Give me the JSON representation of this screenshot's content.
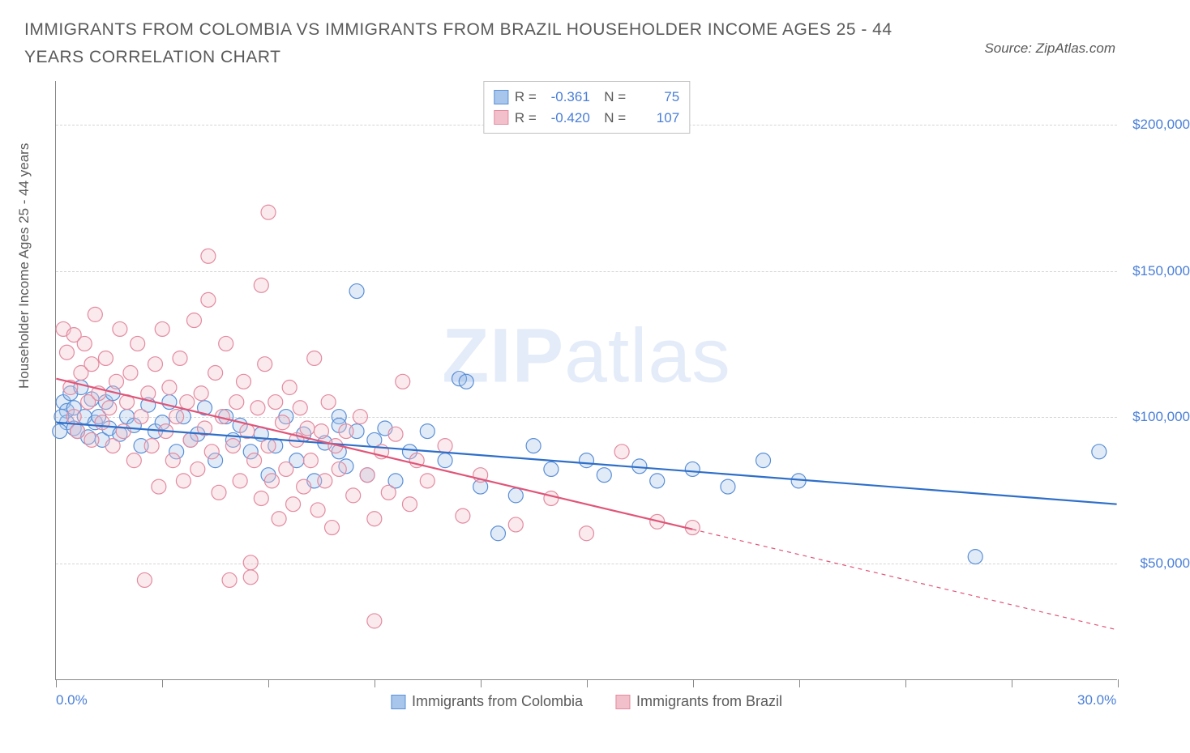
{
  "title": "IMMIGRANTS FROM COLOMBIA VS IMMIGRANTS FROM BRAZIL HOUSEHOLDER INCOME AGES 25 - 44 YEARS CORRELATION CHART",
  "source": "Source: ZipAtlas.com",
  "y_axis_label": "Householder Income Ages 25 - 44 years",
  "watermark_bold": "ZIP",
  "watermark_light": "atlas",
  "chart": {
    "type": "scatter",
    "background_color": "#ffffff",
    "grid_color": "#d5d5d5",
    "axis_color": "#888888",
    "text_color": "#5a5a5a",
    "value_color": "#4a7fd8",
    "xlim": [
      0,
      30
    ],
    "ylim": [
      10000,
      215000
    ],
    "x_ticks": [
      0,
      3,
      6,
      9,
      12,
      15,
      18,
      21,
      24,
      27,
      30
    ],
    "y_gridlines": [
      50000,
      100000,
      150000,
      200000
    ],
    "y_tick_labels": [
      "$50,000",
      "$100,000",
      "$150,000",
      "$200,000"
    ],
    "x_axis_labels": [
      {
        "pos": 0,
        "text": "0.0%"
      },
      {
        "pos": 30,
        "text": "30.0%"
      }
    ],
    "marker_radius": 9,
    "marker_stroke_width": 1.2,
    "marker_fill_opacity": 0.35,
    "trend_line_width": 2.2,
    "series": [
      {
        "name": "Immigrants from Colombia",
        "color_fill": "#a8c6ec",
        "color_stroke": "#5a8fd6",
        "trend_color": "#2e6fc9",
        "R": "-0.361",
        "N": "75",
        "trend": {
          "x1": 0,
          "y1": 98000,
          "x2": 30,
          "y2": 70000,
          "solid_until_x": 30
        },
        "points": [
          [
            0.2,
            105000
          ],
          [
            0.3,
            102000
          ],
          [
            0.3,
            98000
          ],
          [
            0.4,
            108000
          ],
          [
            0.5,
            96000
          ],
          [
            0.5,
            103000
          ],
          [
            0.6,
            95000
          ],
          [
            0.7,
            110000
          ],
          [
            0.8,
            100000
          ],
          [
            0.9,
            93000
          ],
          [
            1.0,
            106000
          ],
          [
            1.1,
            98000
          ],
          [
            1.2,
            100000
          ],
          [
            1.3,
            92000
          ],
          [
            1.4,
            105000
          ],
          [
            1.5,
            96000
          ],
          [
            1.6,
            108000
          ],
          [
            1.8,
            94000
          ],
          [
            2.0,
            100000
          ],
          [
            2.2,
            97000
          ],
          [
            2.4,
            90000
          ],
          [
            2.6,
            104000
          ],
          [
            2.8,
            95000
          ],
          [
            3.0,
            98000
          ],
          [
            3.2,
            105000
          ],
          [
            3.4,
            88000
          ],
          [
            3.6,
            100000
          ],
          [
            3.8,
            92000
          ],
          [
            4.0,
            94000
          ],
          [
            4.2,
            103000
          ],
          [
            4.5,
            85000
          ],
          [
            4.8,
            100000
          ],
          [
            5.0,
            92000
          ],
          [
            5.2,
            97000
          ],
          [
            5.5,
            88000
          ],
          [
            5.8,
            94000
          ],
          [
            6.0,
            80000
          ],
          [
            6.2,
            90000
          ],
          [
            6.5,
            100000
          ],
          [
            6.8,
            85000
          ],
          [
            7.0,
            94000
          ],
          [
            7.3,
            78000
          ],
          [
            7.6,
            91000
          ],
          [
            8.0,
            100000
          ],
          [
            8.0,
            97000
          ],
          [
            8.0,
            88000
          ],
          [
            8.2,
            83000
          ],
          [
            8.5,
            143000
          ],
          [
            8.5,
            95000
          ],
          [
            8.8,
            80000
          ],
          [
            9.0,
            92000
          ],
          [
            9.3,
            96000
          ],
          [
            9.6,
            78000
          ],
          [
            10.0,
            88000
          ],
          [
            10.5,
            95000
          ],
          [
            11.0,
            85000
          ],
          [
            11.4,
            113000
          ],
          [
            11.6,
            112000
          ],
          [
            12.0,
            76000
          ],
          [
            12.5,
            60000
          ],
          [
            13.0,
            73000
          ],
          [
            13.5,
            90000
          ],
          [
            14.0,
            82000
          ],
          [
            15.0,
            85000
          ],
          [
            15.5,
            80000
          ],
          [
            16.5,
            83000
          ],
          [
            17.0,
            78000
          ],
          [
            18.0,
            82000
          ],
          [
            19.0,
            76000
          ],
          [
            20.0,
            85000
          ],
          [
            21.0,
            78000
          ],
          [
            26.0,
            52000
          ],
          [
            29.5,
            88000
          ],
          [
            0.1,
            95000
          ],
          [
            0.15,
            100000
          ]
        ]
      },
      {
        "name": "Immigrants from Brazil",
        "color_fill": "#f2c0ca",
        "color_stroke": "#e38ba0",
        "trend_color": "#e05578",
        "R": "-0.420",
        "N": "107",
        "trend": {
          "x1": 0,
          "y1": 113000,
          "x2": 30,
          "y2": 27000,
          "solid_until_x": 18
        },
        "points": [
          [
            0.2,
            130000
          ],
          [
            0.3,
            122000
          ],
          [
            0.4,
            110000
          ],
          [
            0.5,
            128000
          ],
          [
            0.5,
            100000
          ],
          [
            0.6,
            95000
          ],
          [
            0.7,
            115000
          ],
          [
            0.8,
            125000
          ],
          [
            0.9,
            105000
          ],
          [
            1.0,
            118000
          ],
          [
            1.0,
            92000
          ],
          [
            1.1,
            135000
          ],
          [
            1.2,
            108000
          ],
          [
            1.3,
            98000
          ],
          [
            1.4,
            120000
          ],
          [
            1.5,
            103000
          ],
          [
            1.6,
            90000
          ],
          [
            1.7,
            112000
          ],
          [
            1.8,
            130000
          ],
          [
            1.9,
            95000
          ],
          [
            2.0,
            105000
          ],
          [
            2.1,
            115000
          ],
          [
            2.2,
            85000
          ],
          [
            2.3,
            125000
          ],
          [
            2.4,
            100000
          ],
          [
            2.5,
            44000
          ],
          [
            2.6,
            108000
          ],
          [
            2.7,
            90000
          ],
          [
            2.8,
            118000
          ],
          [
            2.9,
            76000
          ],
          [
            3.0,
            130000
          ],
          [
            3.1,
            95000
          ],
          [
            3.2,
            110000
          ],
          [
            3.3,
            85000
          ],
          [
            3.4,
            100000
          ],
          [
            3.5,
            120000
          ],
          [
            3.6,
            78000
          ],
          [
            3.7,
            105000
          ],
          [
            3.8,
            92000
          ],
          [
            3.9,
            133000
          ],
          [
            4.0,
            82000
          ],
          [
            4.1,
            108000
          ],
          [
            4.2,
            96000
          ],
          [
            4.3,
            155000
          ],
          [
            4.4,
            88000
          ],
          [
            4.5,
            115000
          ],
          [
            4.6,
            74000
          ],
          [
            4.7,
            100000
          ],
          [
            4.8,
            125000
          ],
          [
            4.9,
            44000
          ],
          [
            5.0,
            90000
          ],
          [
            5.1,
            105000
          ],
          [
            5.2,
            78000
          ],
          [
            5.3,
            112000
          ],
          [
            5.4,
            95000
          ],
          [
            5.5,
            45000
          ],
          [
            5.5,
            50000
          ],
          [
            5.6,
            85000
          ],
          [
            5.7,
            103000
          ],
          [
            5.8,
            145000
          ],
          [
            5.8,
            72000
          ],
          [
            5.9,
            118000
          ],
          [
            6.0,
            90000
          ],
          [
            6.0,
            170000
          ],
          [
            6.1,
            78000
          ],
          [
            6.2,
            105000
          ],
          [
            6.3,
            65000
          ],
          [
            6.4,
            98000
          ],
          [
            6.5,
            82000
          ],
          [
            6.6,
            110000
          ],
          [
            6.7,
            70000
          ],
          [
            6.8,
            92000
          ],
          [
            6.9,
            103000
          ],
          [
            7.0,
            76000
          ],
          [
            7.1,
            96000
          ],
          [
            7.2,
            85000
          ],
          [
            7.3,
            120000
          ],
          [
            7.4,
            68000
          ],
          [
            7.5,
            95000
          ],
          [
            7.6,
            78000
          ],
          [
            7.7,
            105000
          ],
          [
            7.8,
            62000
          ],
          [
            7.9,
            90000
          ],
          [
            8.0,
            82000
          ],
          [
            8.2,
            95000
          ],
          [
            8.4,
            73000
          ],
          [
            8.6,
            100000
          ],
          [
            8.8,
            80000
          ],
          [
            9.0,
            65000
          ],
          [
            9.0,
            30000
          ],
          [
            9.2,
            88000
          ],
          [
            9.4,
            74000
          ],
          [
            9.6,
            94000
          ],
          [
            9.8,
            112000
          ],
          [
            10.0,
            70000
          ],
          [
            10.2,
            85000
          ],
          [
            10.5,
            78000
          ],
          [
            11.0,
            90000
          ],
          [
            11.5,
            66000
          ],
          [
            12.0,
            80000
          ],
          [
            13.0,
            63000
          ],
          [
            14.0,
            72000
          ],
          [
            15.0,
            60000
          ],
          [
            16.0,
            88000
          ],
          [
            17.0,
            64000
          ],
          [
            18.0,
            62000
          ],
          [
            4.3,
            140000
          ]
        ]
      }
    ]
  },
  "legend_bottom": [
    {
      "label": "Immigrants from Colombia",
      "fill": "#a8c6ec",
      "stroke": "#5a8fd6"
    },
    {
      "label": "Immigrants from Brazil",
      "fill": "#f2c0ca",
      "stroke": "#e38ba0"
    }
  ]
}
